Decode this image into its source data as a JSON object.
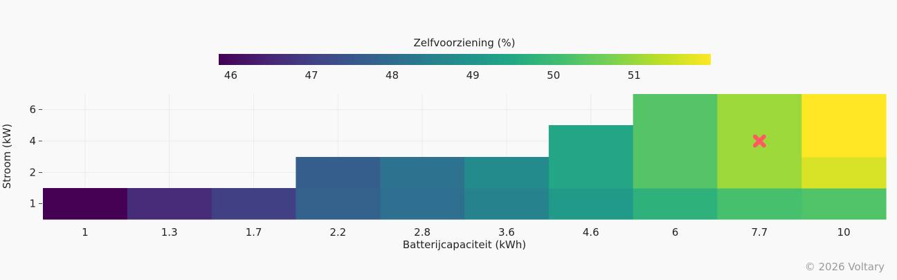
{
  "chart_data": {
    "type": "heatmap",
    "colorbar": {
      "title": "Zelfvoorziening (%)",
      "ticks": [
        46,
        47,
        48,
        49,
        50,
        51
      ],
      "range": [
        45.85,
        51.95
      ],
      "colormap": "viridis"
    },
    "xlabel": "Batterijcapaciteit (kWh)",
    "ylabel": "Stroom (kW)",
    "x_categories": [
      "1",
      "1.3",
      "1.7",
      "2.2",
      "2.8",
      "3.6",
      "4.6",
      "6",
      "7.7",
      "10"
    ],
    "y_ticks": [
      "1",
      "2",
      "4",
      "6"
    ],
    "grid": true,
    "cells": [
      {
        "x": "1",
        "p_min": 0.5,
        "p_max": 1.5,
        "value": 45.85
      },
      {
        "x": "1.3",
        "p_min": 0.5,
        "p_max": 1.5,
        "value": 46.6
      },
      {
        "x": "1.7",
        "p_min": 0.5,
        "p_max": 1.5,
        "value": 47.0
      },
      {
        "x": "2.2",
        "p_min": 0.5,
        "p_max": 1.5,
        "value": 47.75
      },
      {
        "x": "2.2",
        "p_min": 1.5,
        "p_max": 3.0,
        "value": 47.65
      },
      {
        "x": "2.8",
        "p_min": 0.5,
        "p_max": 1.5,
        "value": 48.05
      },
      {
        "x": "2.8",
        "p_min": 1.5,
        "p_max": 3.0,
        "value": 48.15
      },
      {
        "x": "3.6",
        "p_min": 0.5,
        "p_max": 1.5,
        "value": 48.55
      },
      {
        "x": "3.6",
        "p_min": 1.5,
        "p_max": 3.0,
        "value": 48.75
      },
      {
        "x": "4.6",
        "p_min": 0.5,
        "p_max": 1.5,
        "value": 49.15
      },
      {
        "x": "4.6",
        "p_min": 1.5,
        "p_max": 5.0,
        "value": 49.45
      },
      {
        "x": "6",
        "p_min": 0.5,
        "p_max": 1.5,
        "value": 49.75
      },
      {
        "x": "6",
        "p_min": 1.5,
        "p_max": 7.0,
        "value": 50.3
      },
      {
        "x": "7.7",
        "p_min": 0.5,
        "p_max": 1.5,
        "value": 50.15
      },
      {
        "x": "7.7",
        "p_min": 1.5,
        "p_max": 7.0,
        "value": 51.05
      },
      {
        "x": "10",
        "p_min": 0.5,
        "p_max": 1.5,
        "value": 50.25
      },
      {
        "x": "10",
        "p_min": 1.5,
        "p_max": 3.0,
        "value": 51.6
      },
      {
        "x": "10",
        "p_min": 3.0,
        "p_max": 7.0,
        "value": 51.95
      }
    ],
    "marker": {
      "x": "7.7",
      "y": 4,
      "symbol": "x",
      "color": "#ff5a5f"
    }
  },
  "footer": {
    "credit": "© 2026 Voltary"
  }
}
